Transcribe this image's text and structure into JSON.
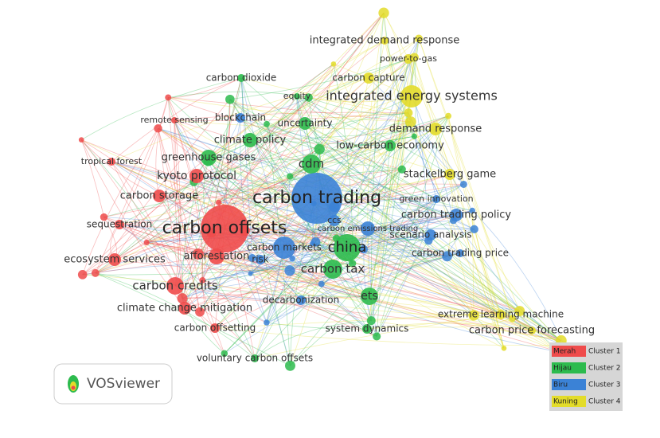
{
  "clusters": [
    {
      "name": "Merah",
      "label": "Cluster 1",
      "color": "#ef4b4b",
      "nodes": [
        "remote sensing",
        "tropical forest",
        "kyoto protocol",
        "carbon storage",
        "sequestration",
        "carbon offsets",
        "ecosystem services",
        "afforestation",
        "carbon credits",
        "climate change mitigation",
        "carbon offsetting"
      ]
    },
    {
      "name": "Hijau",
      "label": "Cluster 2",
      "color": "#2dbb4e",
      "nodes": [
        "carbon dioxide",
        "equity",
        "uncertainty",
        "climate policy",
        "low-carbon economy",
        "greenhouse gases",
        "cdm",
        "china",
        "carbon tax",
        "ets",
        "system dynamics",
        "voluntary carbon offsets"
      ]
    },
    {
      "name": "Biru",
      "label": "Cluster 3",
      "color": "#3b82d6",
      "nodes": [
        "blockchain",
        "carbon trading",
        "green innovation",
        "carbon trading policy",
        "ccs",
        "carbon emissions trading",
        "scenario analysis",
        "carbon markets",
        "risk",
        "carbon trading price",
        "decarbonization"
      ]
    },
    {
      "name": "Kuning",
      "label": "Cluster 4",
      "color": "#e3dc2a",
      "nodes": [
        "integrated demand response",
        "power-to-gas",
        "carbon capture",
        "integrated energy systems",
        "demand response",
        "stackelberg game",
        "extreme learning machine",
        "carbon price forecasting"
      ]
    }
  ],
  "logo": "VOSviewer"
}
